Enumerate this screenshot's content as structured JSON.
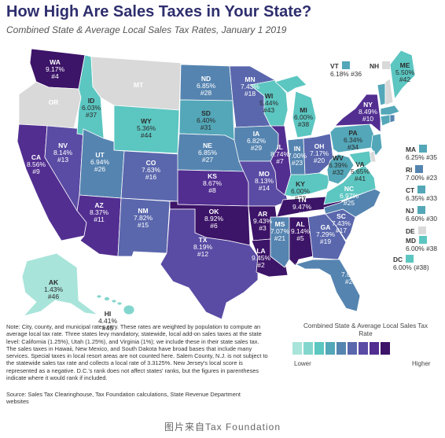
{
  "title": "How High Are Sales Taxes in Your State?",
  "subtitle": "Combined State & Average Local Sales Tax Rates, January 1 2019",
  "colors": {
    "scale": [
      "#a8e4da",
      "#83d6cd",
      "#5cc6c1",
      "#53a7b8",
      "#5584b0",
      "#5a67ad",
      "#5a4ba4",
      "#522e91",
      "#3c1468"
    ],
    "no_tax": "#d9d9d9",
    "border": "#ffffff",
    "title": "#2e2e6e"
  },
  "states": [
    {
      "code": "WA",
      "rate": "9.17%",
      "rank": "#4",
      "level": 8
    },
    {
      "code": "OR",
      "rate": "",
      "rank": "",
      "level": -1
    },
    {
      "code": "CA",
      "rate": "8.56%",
      "rank": "#9",
      "level": 7
    },
    {
      "code": "NV",
      "rate": "8.14%",
      "rank": "#13",
      "level": 6
    },
    {
      "code": "ID",
      "rate": "6.03%",
      "rank": "#37",
      "level": 2
    },
    {
      "code": "MT",
      "rate": "",
      "rank": "",
      "level": -1
    },
    {
      "code": "WY",
      "rate": "5.36%",
      "rank": "#44",
      "level": 2
    },
    {
      "code": "UT",
      "rate": "6.94%",
      "rank": "#26",
      "level": 4
    },
    {
      "code": "AZ",
      "rate": "8.37%",
      "rank": "#11",
      "level": 7
    },
    {
      "code": "CO",
      "rate": "7.63%",
      "rank": "#16",
      "level": 5
    },
    {
      "code": "NM",
      "rate": "7.82%",
      "rank": "#15",
      "level": 5
    },
    {
      "code": "ND",
      "rate": "6.85%",
      "rank": "#28",
      "level": 4
    },
    {
      "code": "SD",
      "rate": "6.40%",
      "rank": "#31",
      "level": 3
    },
    {
      "code": "NE",
      "rate": "6.85%",
      "rank": "#27",
      "level": 4
    },
    {
      "code": "KS",
      "rate": "8.67%",
      "rank": "#8",
      "level": 7
    },
    {
      "code": "OK",
      "rate": "8.92%",
      "rank": "#6",
      "level": 8
    },
    {
      "code": "TX",
      "rate": "8.19%",
      "rank": "#12",
      "level": 6
    },
    {
      "code": "MN",
      "rate": "7.43%",
      "rank": "#18",
      "level": 5
    },
    {
      "code": "IA",
      "rate": "6.82%",
      "rank": "#29",
      "level": 4
    },
    {
      "code": "MO",
      "rate": "8.13%",
      "rank": "#14",
      "level": 6
    },
    {
      "code": "AR",
      "rate": "9.43%",
      "rank": "#3",
      "level": 8
    },
    {
      "code": "LA",
      "rate": "9.45%",
      "rank": "#2",
      "level": 8
    },
    {
      "code": "WI",
      "rate": "5.44%",
      "rank": "#43",
      "level": 2
    },
    {
      "code": "IL",
      "rate": "8.74%",
      "rank": "#7",
      "level": 7
    },
    {
      "code": "MI",
      "rate": "6.00%",
      "rank": "#38",
      "level": 2
    },
    {
      "code": "IN",
      "rate": "7.00%",
      "rank": "#23",
      "level": 4
    },
    {
      "code": "OH",
      "rate": "7.17%",
      "rank": "#20",
      "level": 5
    },
    {
      "code": "KY",
      "rate": "6.00%",
      "rank": "#38",
      "level": 2
    },
    {
      "code": "TN",
      "rate": "9.47%",
      "rank": "#1",
      "level": 8
    },
    {
      "code": "MS",
      "rate": "7.07%",
      "rank": "#21",
      "level": 4
    },
    {
      "code": "AL",
      "rate": "9.14%",
      "rank": "#5",
      "level": 8
    },
    {
      "code": "GA",
      "rate": "7.29%",
      "rank": "#19",
      "level": 5
    },
    {
      "code": "FL",
      "rate": "7.05%",
      "rank": "#22",
      "level": 4
    },
    {
      "code": "SC",
      "rate": "7.43%",
      "rank": "#17",
      "level": 5
    },
    {
      "code": "NC",
      "rate": "6.97%",
      "rank": "#25",
      "level": 4
    },
    {
      "code": "VA",
      "rate": "5.65%",
      "rank": "#41",
      "level": 2
    },
    {
      "code": "WV",
      "rate": "6.39%",
      "rank": "#32",
      "level": 3
    },
    {
      "code": "PA",
      "rate": "6.34%",
      "rank": "#34",
      "level": 3
    },
    {
      "code": "NY",
      "rate": "8.49%",
      "rank": "#10",
      "level": 7
    },
    {
      "code": "ME",
      "rate": "5.50%",
      "rank": "#42",
      "level": 2
    },
    {
      "code": "AK",
      "rate": "1.43%",
      "rank": "#46",
      "level": 0
    },
    {
      "code": "HI",
      "rate": "4.41%",
      "rank": "#45",
      "level": 1
    }
  ],
  "small_states": [
    {
      "code": "VT",
      "rate": "6.18%",
      "rank": "#36",
      "level": 3
    },
    {
      "code": "NH",
      "rate": "",
      "rank": "",
      "level": -1
    },
    {
      "code": "MA",
      "rate": "6.25%",
      "rank": "#35",
      "level": 3
    },
    {
      "code": "RI",
      "rate": "7.00%",
      "rank": "#23",
      "level": 4
    },
    {
      "code": "CT",
      "rate": "6.35%",
      "rank": "#33",
      "level": 3
    },
    {
      "code": "NJ",
      "rate": "6.60%",
      "rank": "#30",
      "level": 3
    },
    {
      "code": "DE",
      "rate": "",
      "rank": "",
      "level": -1
    },
    {
      "code": "MD",
      "rate": "6.00%",
      "rank": "#38",
      "level": 2
    },
    {
      "code": "DC",
      "rate": "6.00%",
      "rank": "(#38)",
      "level": 2
    }
  ],
  "legend": {
    "title": "Combined State & Average Local Sales Tax Rate",
    "low": "Lower",
    "high": "Higher"
  },
  "note": "Note: City, county, and municipal rates vary. These rates are weighted by population to compute an average local tax rate. Three states levy mandatory, statewide, local add-on sales taxes at the state level: California (1.25%), Utah (1.25%), and Virginia (1%); we include these in their state sales tax. The sales taxes in Hawaii, New Mexico, and South Dakota have broad bases that include many services. Special taxes in local resort areas are not counted here. Salem County, N.J. is not subject to the statewide sales tax rate and collects a local rate of 3.3125%. New Jersey's local score is represented as a negative. D.C.'s rank does not affect states' ranks, but the figures in parentheses indicate where it would rank if included.",
  "source": "Source: Sales Tax Clearinghouse, Tax Foundation calculations, State Revenue Department websites",
  "watermark": "图片来自Tax Foundation"
}
